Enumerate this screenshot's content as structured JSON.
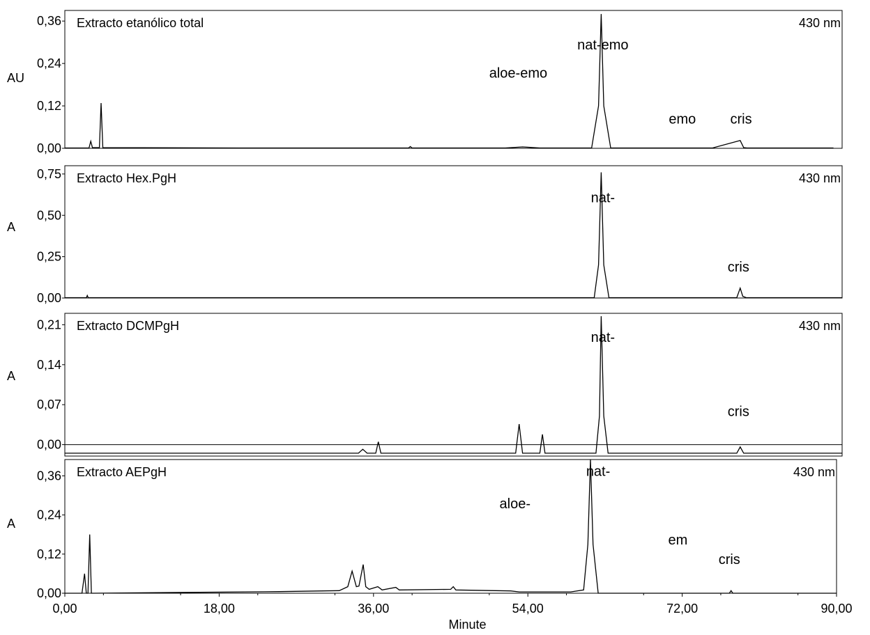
{
  "chart_data": [
    {
      "type": "line",
      "title": "Extracto etanólico total",
      "wavelength_label": "430 nm",
      "ylabel": "AU",
      "yticks": [
        "0,36",
        "0,24",
        "0,12",
        "0,00"
      ],
      "ylim": [
        0,
        0.39
      ],
      "xlim": [
        0,
        90
      ],
      "x": [
        0,
        2.8,
        3.0,
        3.2,
        4.0,
        4.2,
        4.4,
        20,
        39.8,
        40,
        40.2,
        51,
        53,
        55,
        61.0,
        61.8,
        62.1,
        62.4,
        63.2,
        75,
        78.2,
        78.6,
        79.0,
        89
      ],
      "y": [
        0.001,
        0.001,
        0.02,
        0.002,
        0.002,
        0.128,
        0.002,
        0.001,
        0.001,
        0.005,
        0.001,
        0.001,
        0.004,
        0.001,
        0.001,
        0.12,
        0.38,
        0.12,
        0.001,
        0.001,
        0.022,
        0.002,
        0.001,
        0.001
      ],
      "annotations": [
        {
          "text": "aloe-emo",
          "x": 52.5,
          "y": 0.2
        },
        {
          "text": "nat-emo",
          "x": 62.3,
          "y": 0.28
        },
        {
          "text": "emo",
          "x": 71.5,
          "y": 0.07
        },
        {
          "text": "cris",
          "x": 78.3,
          "y": 0.07
        }
      ]
    },
    {
      "type": "line",
      "title": "Extracto Hex.PgH",
      "wavelength_label": "430 nm",
      "ylabel": "A",
      "yticks": [
        "0,75",
        "0,50",
        "0,25",
        "0,00"
      ],
      "ylim": [
        0,
        0.8
      ],
      "xlim": [
        0,
        90
      ],
      "x": [
        0,
        2.5,
        2.6,
        2.7,
        61.3,
        61.8,
        62.1,
        62.4,
        63.0,
        77.8,
        78.2,
        78.5,
        78.9,
        90
      ],
      "y": [
        0.002,
        0.002,
        0.015,
        0.002,
        0.002,
        0.2,
        0.76,
        0.2,
        0.002,
        0.002,
        0.06,
        0.01,
        0.002,
        0.002
      ],
      "annotations": [
        {
          "text": "nat-",
          "x": 62.3,
          "y": 0.58
        },
        {
          "text": "cris",
          "x": 78.0,
          "y": 0.16
        }
      ]
    },
    {
      "type": "line",
      "title": "Extracto DCMPgH",
      "wavelength_label": "430 nm",
      "ylabel": "A",
      "yticks": [
        "0,21",
        "0,14",
        "0,07",
        "0,00"
      ],
      "ylim": [
        -0.02,
        0.23
      ],
      "xlim": [
        0,
        90
      ],
      "x": [
        0,
        34,
        34.5,
        35,
        36,
        36.3,
        36.6,
        52.2,
        52.6,
        53.0,
        55.0,
        55.3,
        55.6,
        61.5,
        61.9,
        62.1,
        62.4,
        62.9,
        77.8,
        78.2,
        78.6,
        90
      ],
      "y": [
        -0.015,
        -0.015,
        -0.008,
        -0.015,
        -0.015,
        0.005,
        -0.015,
        -0.015,
        0.036,
        -0.015,
        -0.015,
        0.018,
        -0.015,
        -0.015,
        0.05,
        0.225,
        0.05,
        -0.015,
        -0.015,
        -0.004,
        -0.015,
        -0.015
      ],
      "annotations": [
        {
          "text": "nat-",
          "x": 62.3,
          "y": 0.18
        },
        {
          "text": "cris",
          "x": 78.0,
          "y": 0.05
        }
      ]
    },
    {
      "type": "line",
      "title": "Extracto AEPgH",
      "wavelength_label": "430 nm",
      "ylabel": "A",
      "xlabel": "Minute",
      "yticks": [
        "0,36",
        "0,24",
        "0,12",
        "0,00"
      ],
      "xticks": [
        "0,00",
        "18,00",
        "36,00",
        "54,00",
        "72,00",
        "90,00"
      ],
      "ylim": [
        0,
        0.41
      ],
      "xlim": [
        0,
        90
      ],
      "x": [
        0,
        2.0,
        2.3,
        2.5,
        2.7,
        2.9,
        3.1,
        3.3,
        25,
        32,
        33.0,
        33.5,
        34.0,
        34.3,
        34.8,
        35.1,
        35.5,
        36.5,
        37,
        38.6,
        39,
        45,
        45.3,
        45.6,
        52,
        53,
        59,
        60.5,
        61.0,
        61.3,
        61.6,
        62.2,
        75,
        77.5,
        77.7,
        77.9,
        90
      ],
      "y": [
        0,
        0,
        0.06,
        0,
        0,
        0.18,
        0,
        0,
        0.005,
        0.008,
        0.02,
        0.068,
        0.02,
        0.022,
        0.088,
        0.02,
        0.012,
        0.02,
        0.01,
        0.018,
        0.01,
        0.012,
        0.02,
        0.01,
        0.007,
        0.004,
        0.004,
        0.01,
        0.15,
        0.41,
        0.15,
        0,
        0,
        0,
        0.008,
        0,
        0
      ],
      "annotations": [
        {
          "text": "aloe-",
          "x": 52.5,
          "y": 0.26
        },
        {
          "text": "nat-",
          "x": 62.2,
          "y": 0.36
        },
        {
          "text": "em",
          "x": 71.5,
          "y": 0.15
        },
        {
          "text": "cris",
          "x": 77.5,
          "y": 0.09
        }
      ]
    }
  ]
}
